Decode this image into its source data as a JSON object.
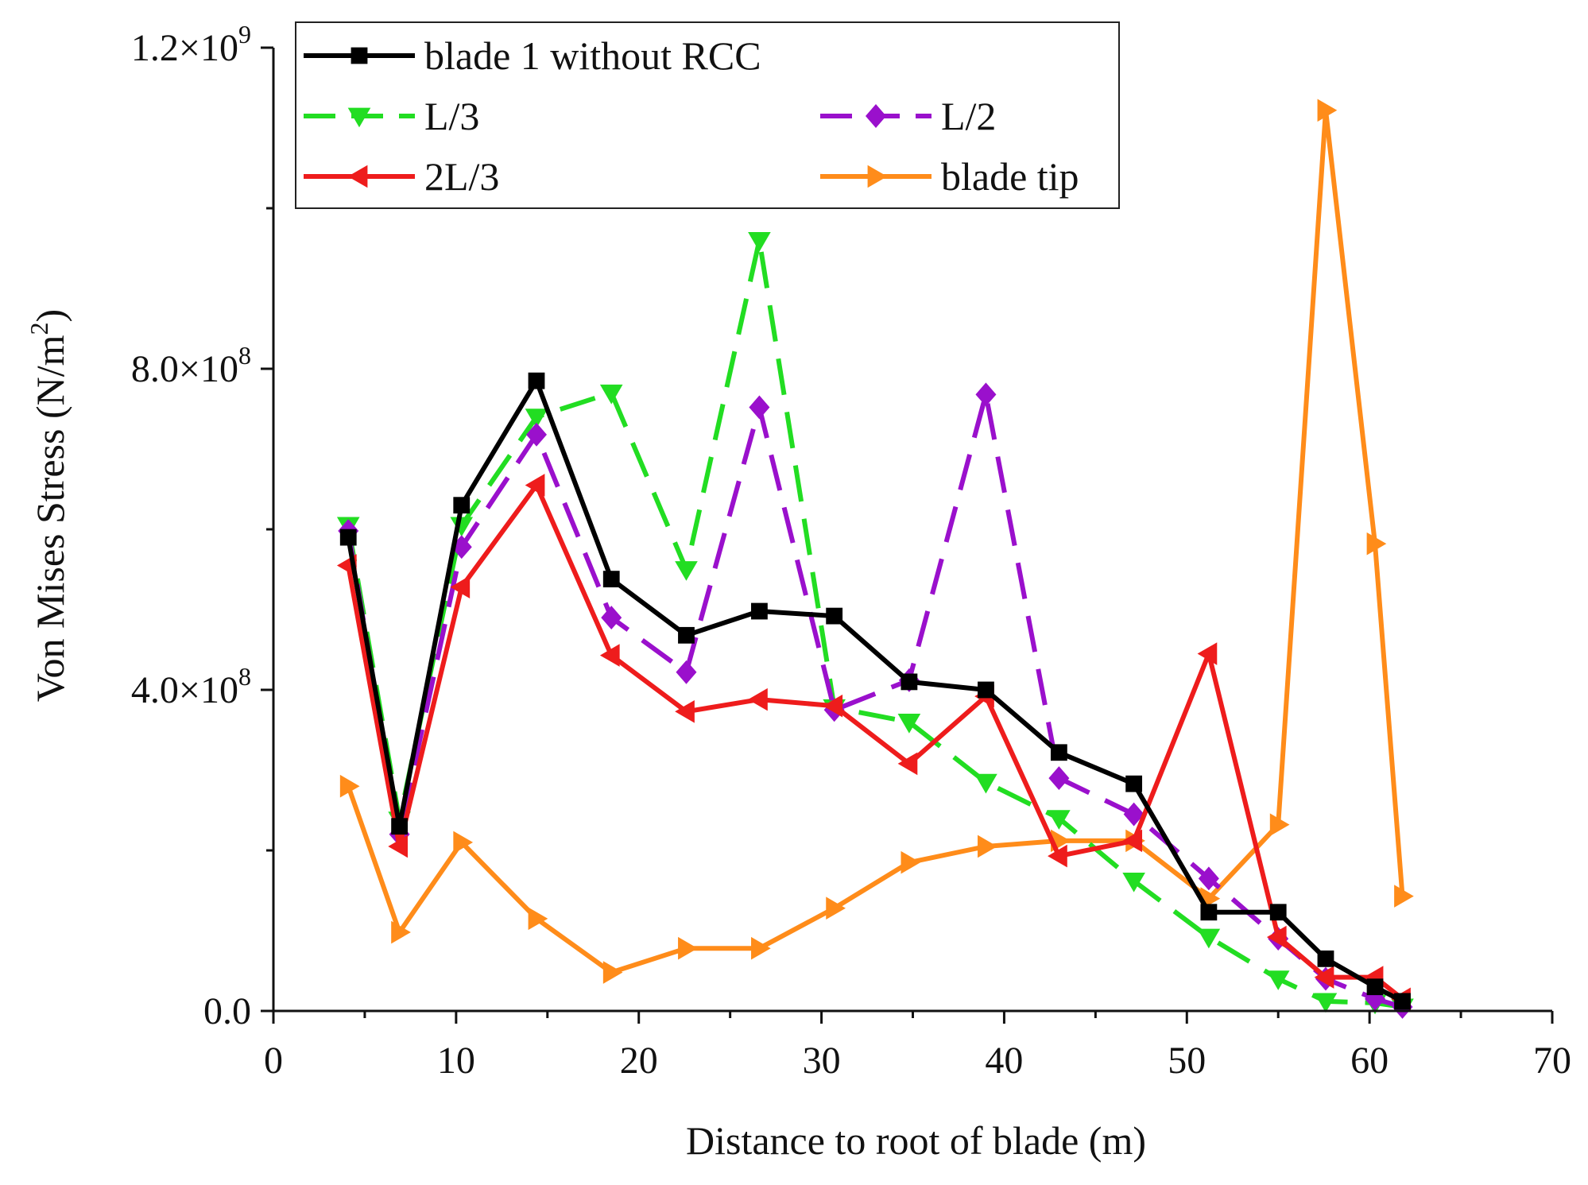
{
  "chart_data": {
    "type": "line",
    "title": "",
    "xlabel": "Distance to root of blade (m)",
    "ylabel": "Von Mises Stress (N/m²)",
    "ylabel_parts": {
      "base": "Von Mises Stress (N/m",
      "sup": "2",
      "tail": ")"
    },
    "xlim": [
      0,
      70
    ],
    "ylim": [
      0,
      1200000000
    ],
    "x_ticks": [
      0,
      10,
      20,
      30,
      40,
      50,
      60,
      70
    ],
    "x_tick_labels": [
      "0",
      "10",
      "20",
      "30",
      "40",
      "50",
      "60",
      "70"
    ],
    "y_ticks": [
      0,
      400000000,
      800000000,
      1200000000
    ],
    "y_tick_labels": [
      {
        "base": "0.0",
        "sup": ""
      },
      {
        "base": "4.0×10",
        "sup": "8"
      },
      {
        "base": "8.0×10",
        "sup": "8"
      },
      {
        "base": "1.2×10",
        "sup": "9"
      }
    ],
    "grid": false,
    "legend_position": "top-left",
    "series": [
      {
        "name": "blade 1 without RCC",
        "color": "#000000",
        "dash": "solid",
        "marker": "square",
        "x": [
          4.1,
          6.9,
          10.3,
          14.4,
          18.5,
          22.6,
          26.6,
          30.7,
          34.8,
          39.0,
          43.0,
          47.1,
          51.2,
          55.0,
          57.6,
          60.3,
          61.8
        ],
        "values": [
          590000000,
          230000000,
          630000000,
          785000000,
          538000000,
          468000000,
          498000000,
          492000000,
          410000000,
          400000000,
          322000000,
          283000000,
          123000000,
          123000000,
          65000000,
          30000000,
          12000000
        ]
      },
      {
        "name": "L/3",
        "color": "#22dd22",
        "dash": "dashed",
        "marker": "triangle-down",
        "x": [
          4.1,
          6.9,
          10.3,
          14.4,
          18.5,
          22.6,
          26.6,
          30.7,
          34.8,
          39.0,
          43.0,
          47.1,
          51.2,
          55.0,
          57.6,
          60.3,
          61.8
        ],
        "values": [
          605000000,
          238000000,
          605000000,
          740000000,
          770000000,
          550000000,
          960000000,
          378000000,
          360000000,
          285000000,
          240000000,
          162000000,
          92000000,
          40000000,
          12000000,
          10000000,
          5000000
        ]
      },
      {
        "name": "L/2",
        "color": "#9a10cc",
        "dash": "dashed",
        "marker": "diamond",
        "x": [
          4.1,
          6.9,
          10.3,
          14.4,
          18.5,
          22.6,
          26.6,
          30.7,
          34.8,
          39.0,
          43.0,
          47.1,
          51.2,
          55.0,
          57.6,
          60.3,
          61.8
        ],
        "values": [
          598000000,
          220000000,
          578000000,
          718000000,
          490000000,
          422000000,
          752000000,
          375000000,
          412000000,
          768000000,
          290000000,
          245000000,
          165000000,
          90000000,
          40000000,
          15000000,
          5000000
        ]
      },
      {
        "name": "2L/3",
        "color": "#ee1c1c",
        "dash": "solid",
        "marker": "triangle-left",
        "x": [
          4.1,
          6.9,
          10.3,
          14.4,
          18.5,
          22.6,
          26.6,
          30.7,
          34.8,
          39.0,
          43.0,
          47.1,
          51.2,
          55.0,
          57.6,
          60.3,
          61.8
        ],
        "values": [
          555000000,
          205000000,
          528000000,
          655000000,
          443000000,
          373000000,
          388000000,
          380000000,
          308000000,
          392000000,
          193000000,
          212000000,
          445000000,
          92000000,
          42000000,
          42000000,
          15000000
        ]
      },
      {
        "name": "blade tip",
        "color": "#ff8c1a",
        "dash": "solid",
        "marker": "triangle-right",
        "x": [
          4.1,
          6.9,
          10.3,
          14.4,
          18.5,
          22.6,
          26.6,
          30.7,
          34.8,
          39.0,
          43.0,
          47.1,
          51.2,
          55.0,
          57.6,
          60.3,
          61.8
        ],
        "values": [
          280000000,
          98000000,
          210000000,
          115000000,
          48000000,
          78000000,
          78000000,
          128000000,
          185000000,
          205000000,
          212000000,
          212000000,
          140000000,
          232000000,
          1122000000,
          582000000,
          143000000
        ]
      }
    ]
  }
}
